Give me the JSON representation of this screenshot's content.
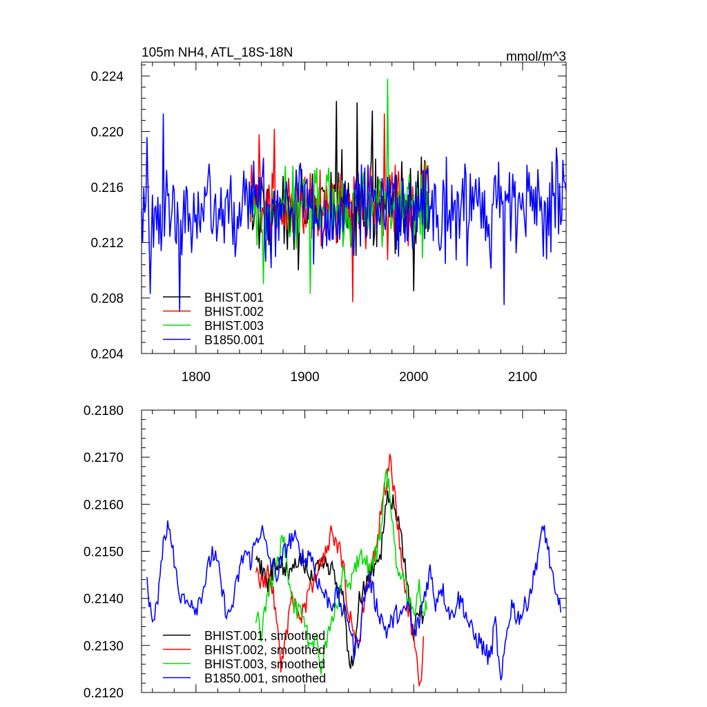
{
  "chart_data": [
    {
      "type": "line",
      "title": "105m NH4, ATL_18S-18N",
      "units": "mmol/m^3",
      "xlim": [
        1750,
        2140
      ],
      "ylim": [
        0.204,
        0.225
      ],
      "xticks": [
        1800,
        1900,
        2000,
        2100
      ],
      "xtick_labels": [
        "1800",
        "1900",
        "2000",
        "2100"
      ],
      "yticks": [
        0.204,
        0.208,
        0.212,
        0.216,
        0.22,
        0.224
      ],
      "ytick_labels": [
        "0.204",
        "0.208",
        "0.212",
        "0.216",
        "0.220",
        "0.224"
      ],
      "legend_position": "bottom-left",
      "colors": {
        "BHIST.001": "#000000",
        "BHIST.002": "#ff0000",
        "BHIST.003": "#00dd00",
        "B1850.001": "#0000ff"
      },
      "series": [
        {
          "name": "BHIST.001",
          "color": "#000000",
          "x_start": 1850,
          "x_end": 2014,
          "amplitude": 0.0033,
          "peaks": [
            [
              1929,
              0.2222
            ],
            [
              1948,
              0.2221
            ],
            [
              1962,
              0.2215
            ],
            [
              2007,
              0.2182
            ],
            [
              2000,
              0.2085
            ]
          ]
        },
        {
          "name": "BHIST.002",
          "color": "#ff0000",
          "x_start": 1850,
          "x_end": 2014,
          "amplitude": 0.0032,
          "peaks": [
            [
              1858,
              0.2198
            ],
            [
              1872,
              0.2202
            ],
            [
              1944,
              0.2077
            ],
            [
              1973,
              0.2213
            ]
          ]
        },
        {
          "name": "BHIST.003",
          "color": "#00dd00",
          "x_start": 1850,
          "x_end": 2014,
          "amplitude": 0.003,
          "peaks": [
            [
              1976,
              0.2238
            ],
            [
              1862,
              0.209
            ],
            [
              1905,
              0.2083
            ]
          ]
        },
        {
          "name": "B1850.001",
          "color": "#0000ff",
          "x_start": 1750,
          "x_end": 2140,
          "amplitude": 0.0035,
          "peaks": [
            [
              1770,
              0.2213
            ],
            [
              1755,
              0.2196
            ],
            [
              1785,
              0.207
            ],
            [
              1758,
              0.2083
            ],
            [
              2083,
              0.2075
            ]
          ]
        }
      ]
    },
    {
      "type": "line",
      "title": "",
      "xlim": [
        1750,
        2140
      ],
      "ylim": [
        0.212,
        0.218
      ],
      "xticks": [
        1800,
        1900,
        2000,
        2100
      ],
      "xtick_labels": [
        "",
        "",
        "",
        ""
      ],
      "yticks": [
        0.212,
        0.213,
        0.214,
        0.215,
        0.216,
        0.217,
        0.218
      ],
      "ytick_labels": [
        "0.2120",
        "0.2130",
        "0.2140",
        "0.2150",
        "0.2160",
        "0.2170",
        "0.2180"
      ],
      "legend_position": "bottom-left",
      "series": [
        {
          "name": "BHIST.001, smoothed",
          "color": "#000000",
          "x_start": 1855,
          "x_end": 2009,
          "anchors": [
            [
              1855,
              0.2149
            ],
            [
              1865,
              0.2143
            ],
            [
              1875,
              0.2148
            ],
            [
              1885,
              0.2146
            ],
            [
              1895,
              0.2149
            ],
            [
              1905,
              0.2144
            ],
            [
              1915,
              0.2148
            ],
            [
              1925,
              0.2147
            ],
            [
              1935,
              0.2141
            ],
            [
              1940,
              0.2128
            ],
            [
              1945,
              0.2126
            ],
            [
              1950,
              0.214
            ],
            [
              1955,
              0.2142
            ],
            [
              1960,
              0.2146
            ],
            [
              1965,
              0.2147
            ],
            [
              1970,
              0.215
            ],
            [
              1975,
              0.2162
            ],
            [
              1980,
              0.2161
            ],
            [
              1985,
              0.2157
            ],
            [
              1990,
              0.215
            ],
            [
              1995,
              0.2141
            ],
            [
              2000,
              0.2132
            ],
            [
              2005,
              0.2138
            ],
            [
              2009,
              0.2135
            ]
          ]
        },
        {
          "name": "BHIST.002, smoothed",
          "color": "#ff0000",
          "x_start": 1855,
          "x_end": 2009,
          "anchors": [
            [
              1855,
              0.2147
            ],
            [
              1862,
              0.2142
            ],
            [
              1867,
              0.2146
            ],
            [
              1872,
              0.2139
            ],
            [
              1878,
              0.2126
            ],
            [
              1883,
              0.2133
            ],
            [
              1888,
              0.214
            ],
            [
              1895,
              0.2136
            ],
            [
              1900,
              0.2138
            ],
            [
              1905,
              0.2142
            ],
            [
              1910,
              0.2145
            ],
            [
              1915,
              0.2148
            ],
            [
              1920,
              0.215
            ],
            [
              1925,
              0.2155
            ],
            [
              1930,
              0.2151
            ],
            [
              1935,
              0.2148
            ],
            [
              1940,
              0.2137
            ],
            [
              1945,
              0.2133
            ],
            [
              1950,
              0.2131
            ],
            [
              1955,
              0.2141
            ],
            [
              1960,
              0.2147
            ],
            [
              1965,
              0.2149
            ],
            [
              1970,
              0.2159
            ],
            [
              1975,
              0.2165
            ],
            [
              1978,
              0.217
            ],
            [
              1982,
              0.2163
            ],
            [
              1986,
              0.2154
            ],
            [
              1990,
              0.2146
            ],
            [
              1995,
              0.2138
            ],
            [
              2000,
              0.2131
            ],
            [
              2004,
              0.2125
            ],
            [
              2006,
              0.2121
            ],
            [
              2009,
              0.2132
            ]
          ]
        },
        {
          "name": "BHIST.003, smoothed",
          "color": "#00dd00",
          "x_start": 1855,
          "x_end": 2012,
          "anchors": [
            [
              1855,
              0.2137
            ],
            [
              1860,
              0.2133
            ],
            [
              1865,
              0.214
            ],
            [
              1870,
              0.2144
            ],
            [
              1875,
              0.2148
            ],
            [
              1880,
              0.2153
            ],
            [
              1885,
              0.2145
            ],
            [
              1890,
              0.2139
            ],
            [
              1895,
              0.2137
            ],
            [
              1900,
              0.2134
            ],
            [
              1905,
              0.213
            ],
            [
              1910,
              0.2131
            ],
            [
              1915,
              0.2126
            ],
            [
              1920,
              0.2131
            ],
            [
              1925,
              0.2135
            ],
            [
              1930,
              0.214
            ],
            [
              1935,
              0.2146
            ],
            [
              1940,
              0.2143
            ],
            [
              1945,
              0.2145
            ],
            [
              1950,
              0.2149
            ],
            [
              1955,
              0.2148
            ],
            [
              1960,
              0.2146
            ],
            [
              1965,
              0.2149
            ],
            [
              1970,
              0.2155
            ],
            [
              1975,
              0.2167
            ],
            [
              1979,
              0.216
            ],
            [
              1982,
              0.2154
            ],
            [
              1985,
              0.2146
            ],
            [
              1990,
              0.2145
            ],
            [
              1995,
              0.214
            ],
            [
              2000,
              0.2137
            ],
            [
              2005,
              0.2143
            ],
            [
              2008,
              0.2138
            ],
            [
              2012,
              0.2139
            ]
          ]
        },
        {
          "name": "B1850.001, smoothed",
          "color": "#0000ff",
          "x_start": 1755,
          "x_end": 2135,
          "anchors": [
            [
              1755,
              0.2143
            ],
            [
              1760,
              0.2135
            ],
            [
              1765,
              0.214
            ],
            [
              1770,
              0.2153
            ],
            [
              1775,
              0.2155
            ],
            [
              1780,
              0.2148
            ],
            [
              1785,
              0.2141
            ],
            [
              1790,
              0.2139
            ],
            [
              1795,
              0.214
            ],
            [
              1800,
              0.2138
            ],
            [
              1805,
              0.2141
            ],
            [
              1810,
              0.2145
            ],
            [
              1815,
              0.215
            ],
            [
              1820,
              0.2147
            ],
            [
              1825,
              0.214
            ],
            [
              1830,
              0.2136
            ],
            [
              1835,
              0.214
            ],
            [
              1840,
              0.2146
            ],
            [
              1845,
              0.215
            ],
            [
              1850,
              0.2148
            ],
            [
              1855,
              0.2152
            ],
            [
              1860,
              0.2155
            ],
            [
              1865,
              0.215
            ],
            [
              1870,
              0.2147
            ],
            [
              1875,
              0.2145
            ],
            [
              1880,
              0.2149
            ],
            [
              1885,
              0.2152
            ],
            [
              1890,
              0.2153
            ],
            [
              1895,
              0.215
            ],
            [
              1900,
              0.2148
            ],
            [
              1905,
              0.215
            ],
            [
              1910,
              0.2145
            ],
            [
              1915,
              0.2142
            ],
            [
              1920,
              0.214
            ],
            [
              1925,
              0.2139
            ],
            [
              1930,
              0.2141
            ],
            [
              1935,
              0.2137
            ],
            [
              1940,
              0.2136
            ],
            [
              1945,
              0.2129
            ],
            [
              1950,
              0.2132
            ],
            [
              1955,
              0.2141
            ],
            [
              1960,
              0.2144
            ],
            [
              1965,
              0.2139
            ],
            [
              1970,
              0.2136
            ],
            [
              1975,
              0.2133
            ],
            [
              1980,
              0.2135
            ],
            [
              1985,
              0.2137
            ],
            [
              1990,
              0.2136
            ],
            [
              1995,
              0.2139
            ],
            [
              2000,
              0.2132
            ],
            [
              2005,
              0.2135
            ],
            [
              2010,
              0.2141
            ],
            [
              2015,
              0.2146
            ],
            [
              2020,
              0.2139
            ],
            [
              2025,
              0.2143
            ],
            [
              2030,
              0.2139
            ],
            [
              2035,
              0.2136
            ],
            [
              2040,
              0.214
            ],
            [
              2045,
              0.2139
            ],
            [
              2050,
              0.2135
            ],
            [
              2055,
              0.2132
            ],
            [
              2060,
              0.2131
            ],
            [
              2065,
              0.2129
            ],
            [
              2070,
              0.2127
            ],
            [
              2075,
              0.2135
            ],
            [
              2080,
              0.2121
            ],
            [
              2085,
              0.2132
            ],
            [
              2090,
              0.2139
            ],
            [
              2095,
              0.2136
            ],
            [
              2100,
              0.2137
            ],
            [
              2105,
              0.214
            ],
            [
              2110,
              0.2144
            ],
            [
              2115,
              0.2151
            ],
            [
              2120,
              0.2155
            ],
            [
              2125,
              0.2148
            ],
            [
              2130,
              0.214
            ],
            [
              2135,
              0.2139
            ]
          ]
        }
      ]
    }
  ]
}
